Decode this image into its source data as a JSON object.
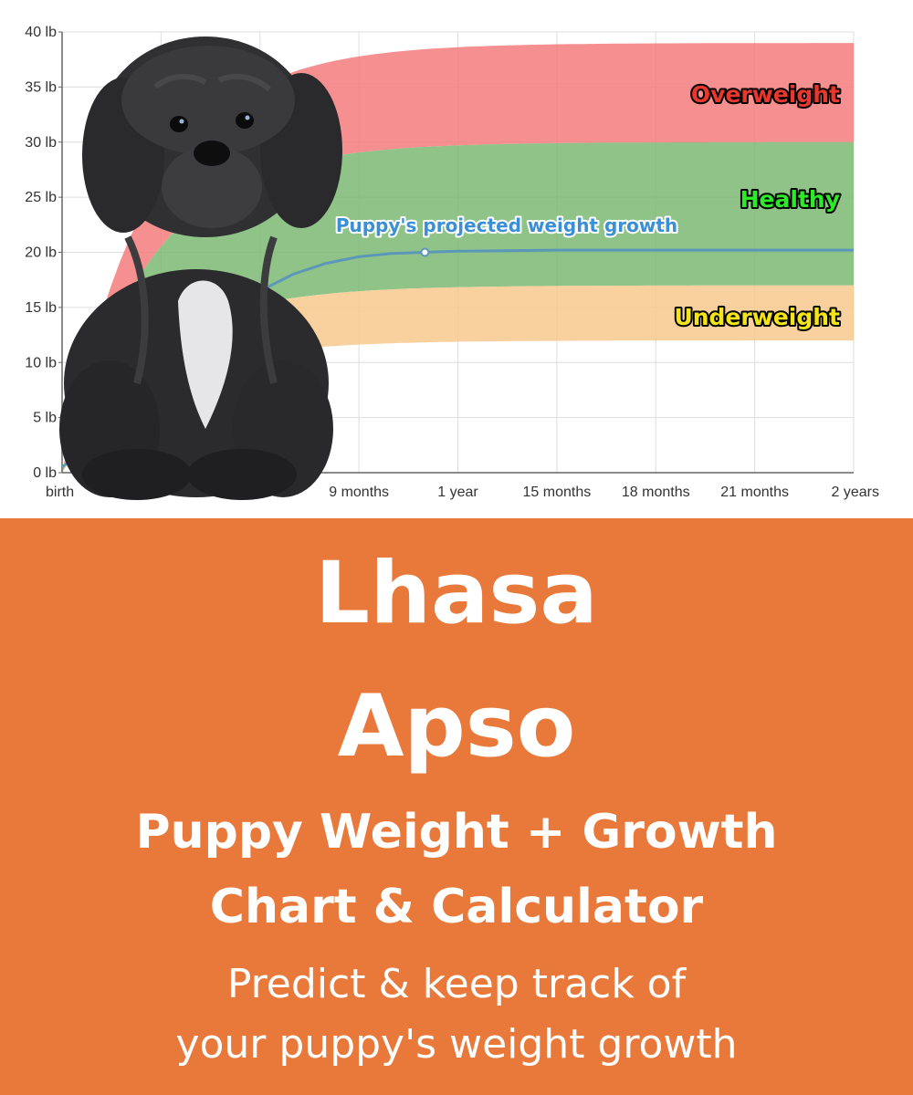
{
  "chart_data": {
    "type": "area",
    "x_ticks_months": [
      0,
      3,
      6,
      9,
      12,
      15,
      18,
      21,
      24
    ],
    "x_tick_labels": [
      "birth",
      "",
      "",
      "9 months",
      "1 year",
      "15 months",
      "18 months",
      "21 months",
      "2 years"
    ],
    "y_ticks": [
      0,
      5,
      10,
      15,
      20,
      25,
      30,
      35,
      40
    ],
    "y_tick_labels": [
      "0 lb",
      "5 lb",
      "10 lb",
      "15 lb",
      "20 lb",
      "25 lb",
      "30 lb",
      "35 lb",
      "40 lb"
    ],
    "xlim_months": [
      0,
      24
    ],
    "ylim": [
      0,
      40
    ],
    "grid": true,
    "bands": [
      {
        "name": "Overweight",
        "label": "Overweight",
        "color": "#f47c7c",
        "label_color": "#e8372f",
        "lower_adult": 30,
        "upper_adult": 39
      },
      {
        "name": "Healthy",
        "label": "Healthy",
        "color": "#7db873",
        "label_color": "#2ee82a",
        "lower_adult": 17,
        "upper_adult": 30
      },
      {
        "name": "Underweight",
        "label": "Underweight",
        "color": "#f8c98e",
        "label_color": "#f4e51b",
        "lower_adult": 12,
        "upper_adult": 17
      }
    ],
    "series": [
      {
        "name": "Puppy's projected weight growth",
        "color": "#5b97b8",
        "x_months": [
          0,
          1,
          2,
          3,
          4,
          5,
          6,
          7,
          8,
          9,
          10,
          11,
          12,
          15,
          18,
          21,
          24
        ],
        "values": [
          0.5,
          3,
          6,
          9,
          12,
          14.5,
          16.5,
          18,
          19,
          19.6,
          19.9,
          20,
          20.1,
          20.2,
          20.2,
          20.2,
          20.2
        ]
      }
    ],
    "marker": {
      "x_month": 11,
      "value": 20
    },
    "growth_label": "Puppy's projected weight growth"
  },
  "banner": {
    "background": "#e8793a",
    "breed_line_1": "Lhasa",
    "breed_line_2": "Apso",
    "subtitle_line_1": "Puppy Weight + Growth",
    "subtitle_line_2": "Chart & Calculator",
    "tagline_line_1": "Predict & keep track of",
    "tagline_line_2": "your puppy's weight growth"
  }
}
